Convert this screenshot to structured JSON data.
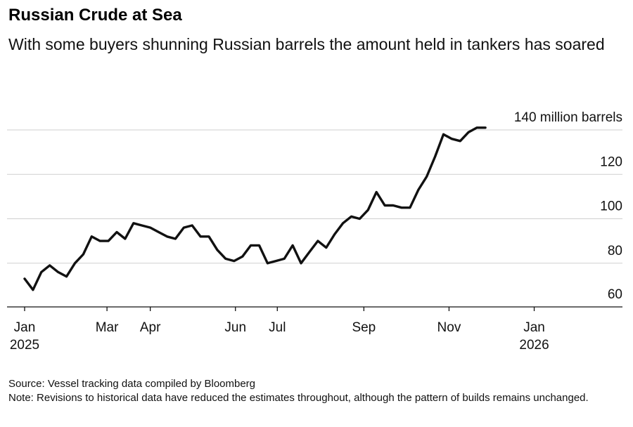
{
  "header": {
    "title": "Russian Crude at Sea",
    "subtitle": "With some buyers shunning Russian barrels the amount held in tankers has soared"
  },
  "footer": {
    "source": "Source: Vessel tracking data compiled by Bloomberg",
    "note": "Note: Revisions to historical data have reduced the estimates throughout, although the pattern of builds remains unchanged."
  },
  "chart_data": {
    "type": "line",
    "ylabel": "",
    "ylim": [
      60,
      140
    ],
    "yticks": [
      60,
      80,
      100,
      120,
      140
    ],
    "ytick_labels": [
      "60",
      "80",
      "100",
      "120",
      "140 million barrels"
    ],
    "grid": true,
    "xlim": [
      "2025-01-01",
      "2026-03-15"
    ],
    "xticks": [
      {
        "date": "2025-01-01",
        "label": "Jan",
        "sublabel": "2025"
      },
      {
        "date": "2025-03-01",
        "label": "Mar",
        "sublabel": ""
      },
      {
        "date": "2025-04-01",
        "label": "Apr",
        "sublabel": ""
      },
      {
        "date": "2025-06-01",
        "label": "Jun",
        "sublabel": ""
      },
      {
        "date": "2025-07-01",
        "label": "Jul",
        "sublabel": ""
      },
      {
        "date": "2025-09-01",
        "label": "Sep",
        "sublabel": ""
      },
      {
        "date": "2025-11-01",
        "label": "Nov",
        "sublabel": ""
      },
      {
        "date": "2026-01-01",
        "label": "Jan",
        "sublabel": "2026"
      }
    ],
    "series": [
      {
        "color": "#111111",
        "points": [
          [
            "2025-01-01",
            73
          ],
          [
            "2025-01-07",
            68
          ],
          [
            "2025-01-13",
            76
          ],
          [
            "2025-01-19",
            79
          ],
          [
            "2025-01-25",
            76
          ],
          [
            "2025-01-31",
            74
          ],
          [
            "2025-02-06",
            80
          ],
          [
            "2025-02-12",
            84
          ],
          [
            "2025-02-18",
            92
          ],
          [
            "2025-02-24",
            90
          ],
          [
            "2025-03-02",
            90
          ],
          [
            "2025-03-08",
            94
          ],
          [
            "2025-03-14",
            91
          ],
          [
            "2025-03-20",
            98
          ],
          [
            "2025-03-26",
            97
          ],
          [
            "2025-04-01",
            96
          ],
          [
            "2025-04-07",
            94
          ],
          [
            "2025-04-13",
            92
          ],
          [
            "2025-04-19",
            91
          ],
          [
            "2025-04-25",
            96
          ],
          [
            "2025-05-01",
            97
          ],
          [
            "2025-05-07",
            92
          ],
          [
            "2025-05-13",
            92
          ],
          [
            "2025-05-19",
            86
          ],
          [
            "2025-05-25",
            82
          ],
          [
            "2025-05-31",
            81
          ],
          [
            "2025-06-06",
            83
          ],
          [
            "2025-06-12",
            88
          ],
          [
            "2025-06-18",
            88
          ],
          [
            "2025-06-24",
            80
          ],
          [
            "2025-06-30",
            81
          ],
          [
            "2025-07-06",
            82
          ],
          [
            "2025-07-12",
            88
          ],
          [
            "2025-07-18",
            80
          ],
          [
            "2025-07-24",
            85
          ],
          [
            "2025-07-30",
            90
          ],
          [
            "2025-08-05",
            87
          ],
          [
            "2025-08-11",
            93
          ],
          [
            "2025-08-17",
            98
          ],
          [
            "2025-08-23",
            101
          ],
          [
            "2025-08-29",
            100
          ],
          [
            "2025-09-04",
            104
          ],
          [
            "2025-09-10",
            112
          ],
          [
            "2025-09-16",
            106
          ],
          [
            "2025-09-22",
            106
          ],
          [
            "2025-09-28",
            105
          ],
          [
            "2025-10-04",
            105
          ],
          [
            "2025-10-10",
            113
          ],
          [
            "2025-10-16",
            119
          ],
          [
            "2025-10-22",
            128
          ],
          [
            "2025-10-28",
            138
          ],
          [
            "2025-11-03",
            136
          ],
          [
            "2025-11-09",
            135
          ],
          [
            "2025-11-15",
            139
          ],
          [
            "2025-11-21",
            141
          ],
          [
            "2025-11-27",
            141
          ]
        ]
      }
    ]
  }
}
